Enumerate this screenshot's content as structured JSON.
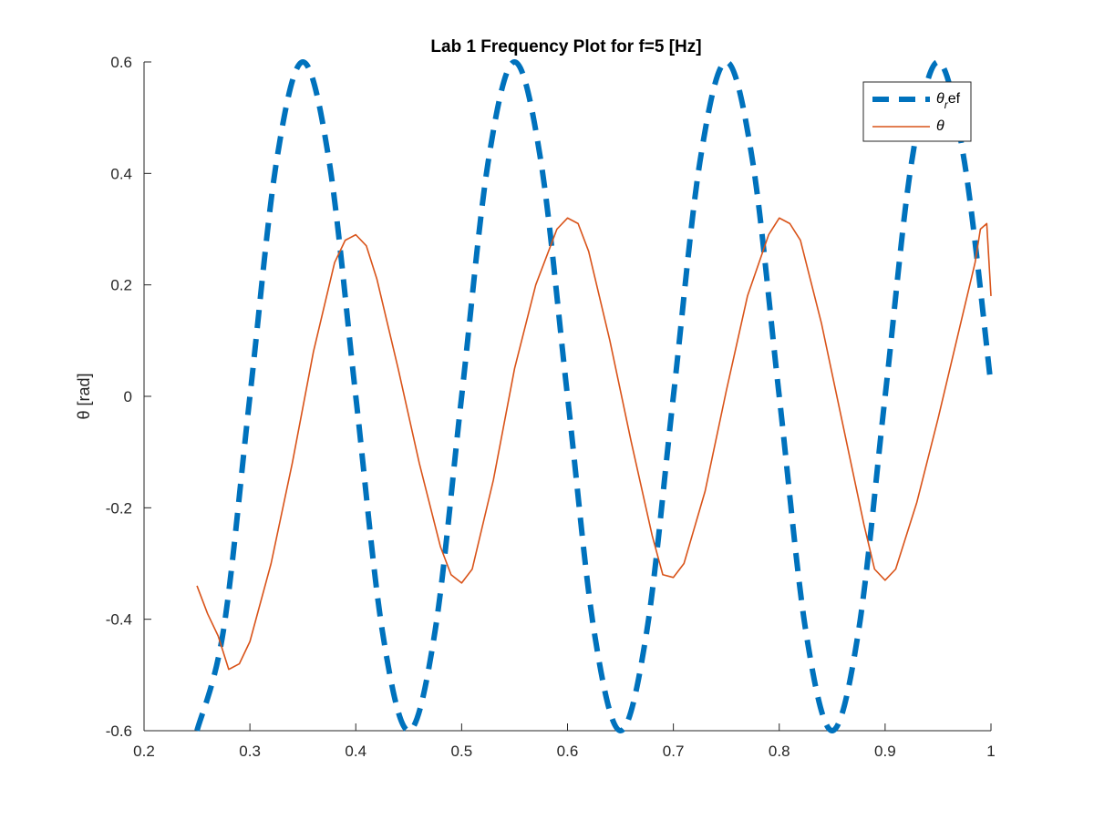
{
  "chart_data": {
    "type": "line",
    "title": "Lab 1 Frequency Plot for f=5 [Hz]",
    "xlabel": "",
    "ylabel": "θ [rad]",
    "xlim": [
      0.2,
      1.0
    ],
    "ylim": [
      -0.6,
      0.6
    ],
    "xticks": [
      0.2,
      0.3,
      0.4,
      0.5,
      0.6,
      0.7,
      0.8,
      0.9,
      1.0
    ],
    "xtick_labels": [
      "0.2",
      "0.3",
      "0.4",
      "0.5",
      "0.6",
      "0.7",
      "0.8",
      "0.9",
      "1"
    ],
    "yticks": [
      -0.6,
      -0.4,
      -0.2,
      0,
      0.2,
      0.4,
      0.6
    ],
    "ytick_labels": [
      "-0.6",
      "-0.4",
      "-0.2",
      "0",
      "0.2",
      "0.4",
      "0.6"
    ],
    "grid": false,
    "legend_position": "top-right",
    "series": [
      {
        "name": "θref",
        "legend_main": "θ",
        "legend_sub": "r",
        "legend_tail": "ef",
        "style": "dashed",
        "color": "#0072BD",
        "x": [
          0.25,
          0.275,
          0.3,
          0.325,
          0.35,
          0.375,
          0.4,
          0.425,
          0.45,
          0.475,
          0.5,
          0.525,
          0.55,
          0.575,
          0.6,
          0.625,
          0.65,
          0.675,
          0.7,
          0.725,
          0.75,
          0.775,
          0.8,
          0.825,
          0.85,
          0.875,
          0.9,
          0.925,
          0.95,
          0.975,
          1.0
        ],
        "y": [
          -0.6,
          -0.42,
          0.0,
          0.42,
          0.6,
          0.42,
          0.0,
          -0.42,
          -0.6,
          -0.42,
          0.0,
          0.42,
          0.6,
          0.42,
          0.0,
          -0.42,
          -0.6,
          -0.42,
          0.0,
          0.42,
          0.6,
          0.42,
          0.0,
          -0.42,
          -0.6,
          -0.42,
          0.0,
          0.42,
          0.6,
          0.42,
          0.02
        ]
      },
      {
        "name": "θ",
        "legend_main": "θ",
        "legend_sub": "",
        "legend_tail": "",
        "style": "solid",
        "color": "#D95319",
        "x": [
          0.25,
          0.26,
          0.27,
          0.28,
          0.29,
          0.3,
          0.32,
          0.34,
          0.36,
          0.38,
          0.39,
          0.4,
          0.41,
          0.42,
          0.44,
          0.46,
          0.48,
          0.49,
          0.5,
          0.51,
          0.53,
          0.55,
          0.57,
          0.59,
          0.6,
          0.61,
          0.62,
          0.64,
          0.66,
          0.68,
          0.69,
          0.7,
          0.71,
          0.73,
          0.75,
          0.77,
          0.79,
          0.8,
          0.81,
          0.82,
          0.84,
          0.86,
          0.88,
          0.89,
          0.9,
          0.91,
          0.93,
          0.95,
          0.97,
          0.985,
          0.99,
          0.996,
          1.0
        ],
        "y": [
          -0.34,
          -0.39,
          -0.43,
          -0.49,
          -0.48,
          -0.44,
          -0.3,
          -0.12,
          0.08,
          0.24,
          0.28,
          0.29,
          0.27,
          0.21,
          0.05,
          -0.12,
          -0.27,
          -0.32,
          -0.335,
          -0.31,
          -0.15,
          0.05,
          0.2,
          0.3,
          0.32,
          0.31,
          0.26,
          0.1,
          -0.08,
          -0.25,
          -0.32,
          -0.325,
          -0.3,
          -0.17,
          0.01,
          0.18,
          0.29,
          0.32,
          0.31,
          0.28,
          0.13,
          -0.05,
          -0.23,
          -0.31,
          -0.33,
          -0.31,
          -0.19,
          -0.04,
          0.12,
          0.24,
          0.3,
          0.31,
          0.18
        ]
      }
    ]
  }
}
